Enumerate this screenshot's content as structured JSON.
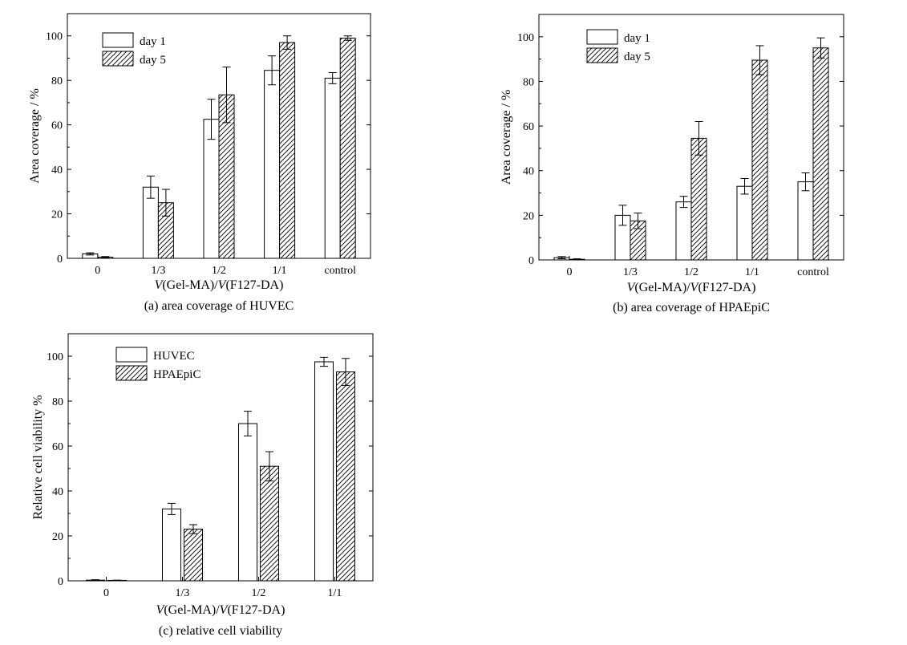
{
  "chart_data": [
    {
      "type": "bar",
      "caption": "(a) area coverage of HUVEC",
      "xlabel_parts": [
        [
          "V",
          true
        ],
        [
          "(Gel-MA)/",
          false
        ],
        [
          "V",
          true
        ],
        [
          "(F127-DA)",
          false
        ]
      ],
      "ylabel": "Area coverage / %",
      "categories": [
        "0",
        "1/3",
        "1/2",
        "1/1",
        "control"
      ],
      "ylim": [
        0,
        110
      ],
      "yticks": [
        0,
        20,
        40,
        60,
        80,
        100
      ],
      "legend_position": "top-left",
      "series": [
        {
          "name": "day 1",
          "pattern": "open",
          "values": [
            2,
            32,
            62.5,
            84.5,
            81
          ],
          "errors": [
            0.5,
            5,
            9,
            6.5,
            2.5
          ]
        },
        {
          "name": "day 5",
          "pattern": "hatched",
          "values": [
            0.5,
            25,
            73.5,
            97,
            99
          ],
          "errors": [
            0.3,
            6,
            12.5,
            3,
            1
          ]
        }
      ]
    },
    {
      "type": "bar",
      "caption": "(b) area coverage of HPAEpiC",
      "xlabel_parts": [
        [
          "V",
          true
        ],
        [
          "(Gel-MA)/",
          false
        ],
        [
          "V",
          true
        ],
        [
          "(F127-DA)",
          false
        ]
      ],
      "ylabel": "Area coverage / %",
      "categories": [
        "0",
        "1/3",
        "1/2",
        "1/1",
        "control"
      ],
      "ylim": [
        0,
        110
      ],
      "yticks": [
        0,
        20,
        40,
        60,
        80,
        100
      ],
      "legend_position": "top-left",
      "series": [
        {
          "name": "day 1",
          "pattern": "open",
          "values": [
            1,
            20,
            26,
            33,
            35
          ],
          "errors": [
            0.5,
            4.5,
            2.5,
            3.5,
            4
          ]
        },
        {
          "name": "day 5",
          "pattern": "hatched",
          "values": [
            0.3,
            17.5,
            54.5,
            89.5,
            95
          ],
          "errors": [
            0.2,
            3.5,
            7.5,
            6.5,
            4.5
          ]
        }
      ]
    },
    {
      "type": "bar",
      "caption": "(c) relative cell viability",
      "xlabel_parts": [
        [
          "V",
          true
        ],
        [
          "(Gel-MA)/",
          false
        ],
        [
          "V",
          true
        ],
        [
          "(F127-DA)",
          false
        ]
      ],
      "ylabel": "Relative cell viability %",
      "categories": [
        "0",
        "1/3",
        "1/2",
        "1/1"
      ],
      "ylim": [
        0,
        110
      ],
      "yticks": [
        0,
        20,
        40,
        60,
        80,
        100
      ],
      "legend_position": "top-left",
      "series": [
        {
          "name": "HUVEC",
          "pattern": "open",
          "values": [
            0.3,
            32,
            70,
            97.5
          ],
          "errors": [
            0.2,
            2.5,
            5.5,
            2
          ]
        },
        {
          "name": "HPAEpiC",
          "pattern": "hatched",
          "values": [
            0.2,
            23,
            51,
            93
          ],
          "errors": [
            0.1,
            2,
            6.5,
            6
          ]
        }
      ]
    }
  ]
}
